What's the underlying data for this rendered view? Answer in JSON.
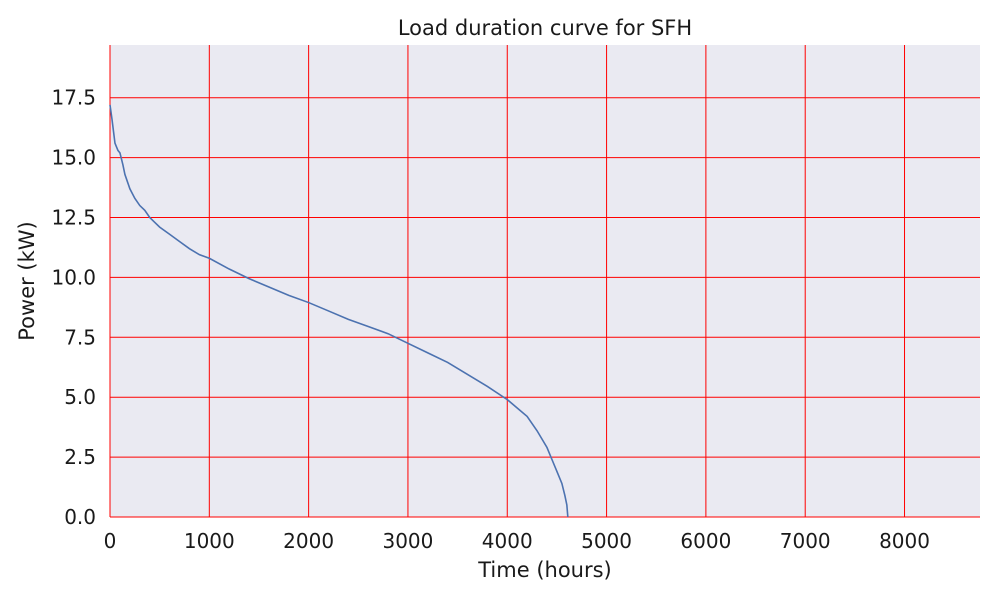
{
  "chart_data": {
    "type": "line",
    "title": "Load duration curve for SFH",
    "xlabel": "Time (hours)",
    "ylabel": "Power (kW)",
    "xlim": [
      0,
      8760
    ],
    "ylim": [
      0,
      19.7
    ],
    "xticks": [
      0,
      1000,
      2000,
      3000,
      4000,
      5000,
      6000,
      7000,
      8000
    ],
    "xtick_labels": [
      "0",
      "1000",
      "2000",
      "3000",
      "4000",
      "5000",
      "6000",
      "7000",
      "8000"
    ],
    "yticks": [
      0,
      2.5,
      5,
      7.5,
      10,
      12.5,
      15,
      17.5
    ],
    "ytick_labels": [
      "0.0",
      "2.5",
      "5.0",
      "7.5",
      "10.0",
      "12.5",
      "15.0",
      "17.5"
    ],
    "grid": true,
    "colors": {
      "background": "#eaeaf2",
      "grid": "#ff0000",
      "line": "#4c72b0",
      "text": "#1a1a1a"
    },
    "series": [
      {
        "x": [
          0,
          20,
          50,
          80,
          100,
          130,
          150,
          200,
          250,
          300,
          350,
          400,
          450,
          500,
          600,
          700,
          800,
          900,
          1000,
          1200,
          1400,
          1600,
          1800,
          2000,
          2200,
          2400,
          2600,
          2800,
          3000,
          3200,
          3400,
          3600,
          3800,
          4000,
          4100,
          4200,
          4300,
          4400,
          4450,
          4500,
          4550,
          4580,
          4600,
          4610
        ],
        "y": [
          17.2,
          16.6,
          15.6,
          15.3,
          15.2,
          14.7,
          14.3,
          13.7,
          13.3,
          13.0,
          12.8,
          12.5,
          12.3,
          12.1,
          11.8,
          11.5,
          11.2,
          10.95,
          10.8,
          10.35,
          9.95,
          9.6,
          9.25,
          8.95,
          8.6,
          8.25,
          7.95,
          7.65,
          7.25,
          6.85,
          6.45,
          5.95,
          5.45,
          4.9,
          4.55,
          4.2,
          3.6,
          2.9,
          2.4,
          1.9,
          1.4,
          0.9,
          0.5,
          0.0
        ]
      }
    ]
  }
}
